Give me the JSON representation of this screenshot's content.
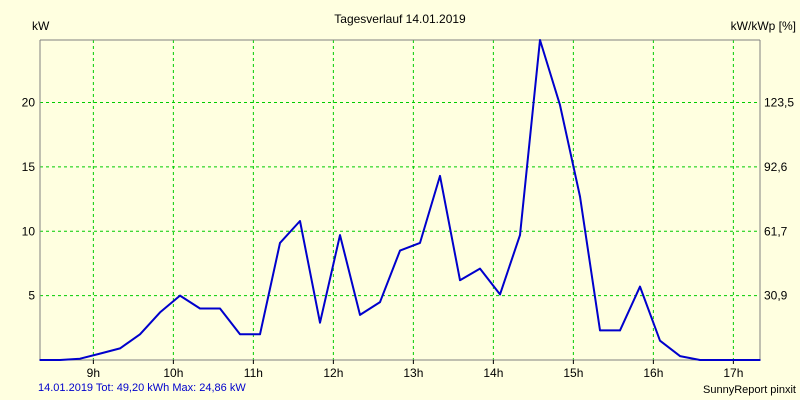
{
  "colors": {
    "background": "#ffffe0",
    "grid": "#00cc00",
    "series": "#0000cc",
    "axis": "#808080",
    "footer_left": "#0000cc",
    "footer_right": "#000000"
  },
  "footer": {
    "left": "14.01.2019 Tot: 49,20 kWh Max: 24,86 kW",
    "right": "SunnyReport pinxit"
  },
  "chart_data": {
    "type": "line",
    "title": "Tagesverlauf 14.01.2019",
    "ylabel_left": "kW",
    "ylabel_right": "kW/kWp [%]",
    "x_start": 8.333,
    "x_end": 17.333,
    "ylim": [
      0,
      24.86
    ],
    "x_ticks": [
      {
        "value": 9,
        "label": "9h"
      },
      {
        "value": 10,
        "label": "10h"
      },
      {
        "value": 11,
        "label": "11h"
      },
      {
        "value": 12,
        "label": "12h"
      },
      {
        "value": 13,
        "label": "13h"
      },
      {
        "value": 14,
        "label": "14h"
      },
      {
        "value": 15,
        "label": "15h"
      },
      {
        "value": 16,
        "label": "16h"
      },
      {
        "value": 17,
        "label": "17h"
      }
    ],
    "y_ticks_left": [
      {
        "value": 5,
        "label": "5"
      },
      {
        "value": 10,
        "label": "10"
      },
      {
        "value": 15,
        "label": "15"
      },
      {
        "value": 20,
        "label": "20"
      }
    ],
    "y_ticks_right": [
      {
        "value": 5,
        "label": "30,9"
      },
      {
        "value": 10,
        "label": "61,7"
      },
      {
        "value": 15,
        "label": "92,6"
      },
      {
        "value": 20,
        "label": "123,5"
      }
    ],
    "grid": true,
    "series": [
      {
        "x": [
          8.333,
          8.583,
          8.833,
          9.083,
          9.333,
          9.583,
          9.833,
          10.083,
          10.333,
          10.583,
          10.833,
          11.083,
          11.333,
          11.583,
          11.833,
          12.083,
          12.333,
          12.583,
          12.833,
          13.083,
          13.333,
          13.583,
          13.833,
          14.083,
          14.333,
          14.583,
          14.833,
          15.083,
          15.333,
          15.583,
          15.833,
          16.083,
          16.333,
          16.583,
          16.833,
          17.083,
          17.333
        ],
        "y": [
          0,
          0,
          0.1,
          0.5,
          0.9,
          2.0,
          3.7,
          5.0,
          4.0,
          4.0,
          2.0,
          2.0,
          9.1,
          10.8,
          2.9,
          9.7,
          3.5,
          4.5,
          8.5,
          9.1,
          14.3,
          6.2,
          7.1,
          5.1,
          9.7,
          24.86,
          19.8,
          12.7,
          2.3,
          2.3,
          5.7,
          1.5,
          0.3,
          0,
          0,
          0,
          0
        ]
      }
    ]
  }
}
